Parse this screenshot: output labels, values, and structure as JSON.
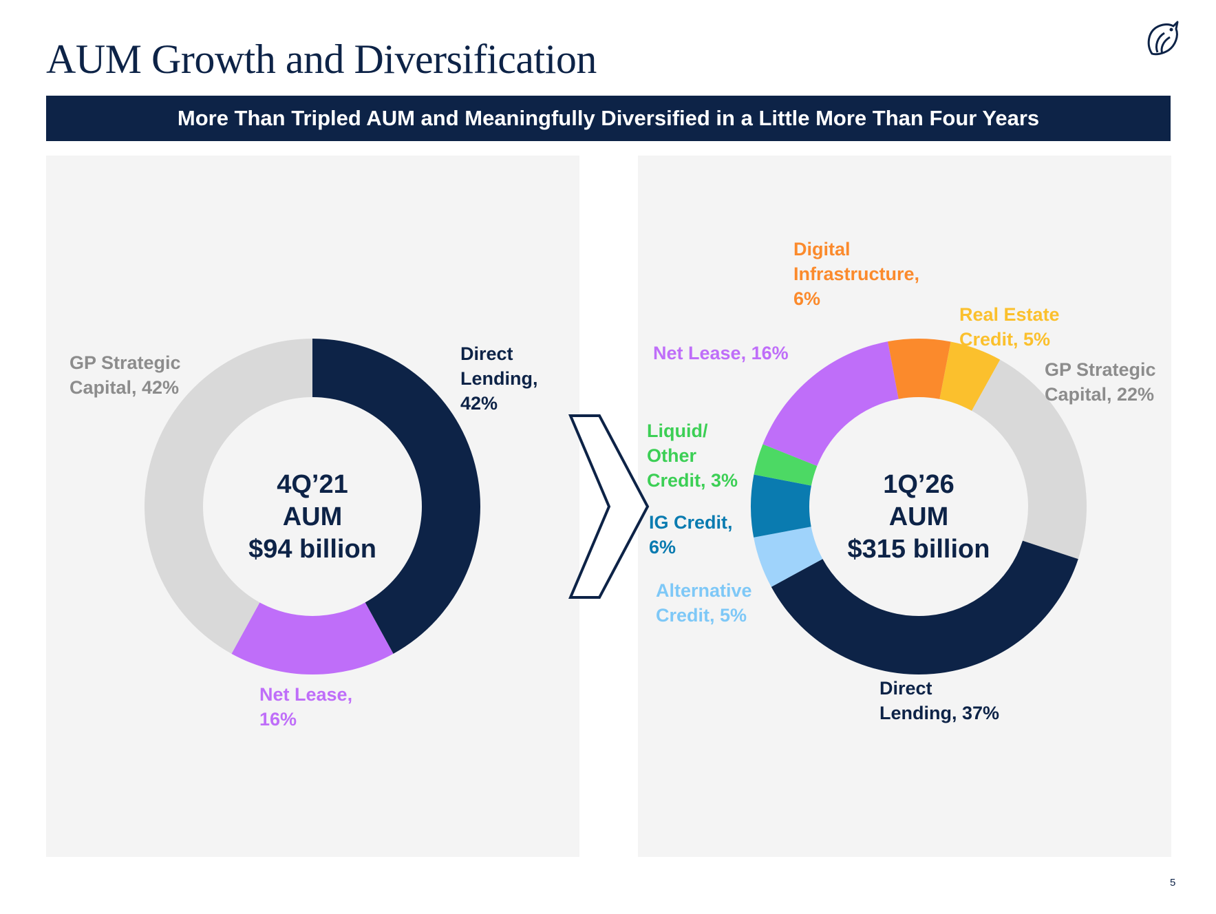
{
  "title": "AUM Growth and Diversification",
  "banner": "More Than Tripled AUM and Meaningfully Diversified in a Little More Than Four Years",
  "page_number": "5",
  "logo": "owl-icon",
  "chart_data": [
    {
      "type": "pie",
      "variant": "donut",
      "title": "4Q’21 AUM $94 billion",
      "center_lines": [
        "4Q’21",
        "AUM",
        "$94 billion"
      ],
      "categories": [
        "Direct Lending",
        "Net Lease",
        "GP Strategic Capital"
      ],
      "values": [
        42,
        16,
        42
      ],
      "unit": "%",
      "colors": [
        "#0d2347",
        "#bf6ef9",
        "#d9d9d9"
      ],
      "labels": [
        {
          "lines": [
            "Direct",
            "Lending,",
            "42%"
          ],
          "color": "#0d2347"
        },
        {
          "lines": [
            "Net Lease,",
            "16%"
          ],
          "color": "#bf6ef9"
        },
        {
          "lines": [
            "GP Strategic",
            "Capital, 42%"
          ],
          "color": "#8c8c8c"
        }
      ]
    },
    {
      "type": "pie",
      "variant": "donut",
      "title": "1Q’26 AUM $315 billion",
      "center_lines": [
        "1Q’26",
        "AUM",
        "$315 billion"
      ],
      "categories": [
        "Real Estate Credit",
        "GP Strategic Capital",
        "Direct Lending",
        "Alternative Credit",
        "IG Credit",
        "Liquid/ Other Credit",
        "Net Lease",
        "Digital Infrastructure"
      ],
      "values": [
        5,
        22,
        37,
        5,
        6,
        3,
        16,
        6
      ],
      "unit": "%",
      "colors": [
        "#fbc02d",
        "#d9d9d9",
        "#0d2347",
        "#9fd3fb",
        "#0a7bb0",
        "#4cd964",
        "#bf6ef9",
        "#fb8a2c"
      ],
      "labels": [
        {
          "lines": [
            "Real Estate",
            "Credit, 5%"
          ],
          "color": "#fbc02d"
        },
        {
          "lines": [
            "GP Strategic",
            "Capital, 22%"
          ],
          "color": "#8c8c8c"
        },
        {
          "lines": [
            "Direct",
            "Lending, 37%"
          ],
          "color": "#0d2347"
        },
        {
          "lines": [
            "Alternative",
            "Credit, 5%"
          ],
          "color": "#7ec8f7"
        },
        {
          "lines": [
            "IG Credit,",
            "6%"
          ],
          "color": "#0a7bb0"
        },
        {
          "lines": [
            "Liquid/",
            "Other",
            "Credit, 3%"
          ],
          "color": "#3ccf55"
        },
        {
          "lines": [
            "Net Lease, 16%"
          ],
          "color": "#bf6ef9"
        },
        {
          "lines": [
            "Digital",
            "Infrastructure,",
            "6%"
          ],
          "color": "#fb8a2c"
        }
      ]
    }
  ]
}
